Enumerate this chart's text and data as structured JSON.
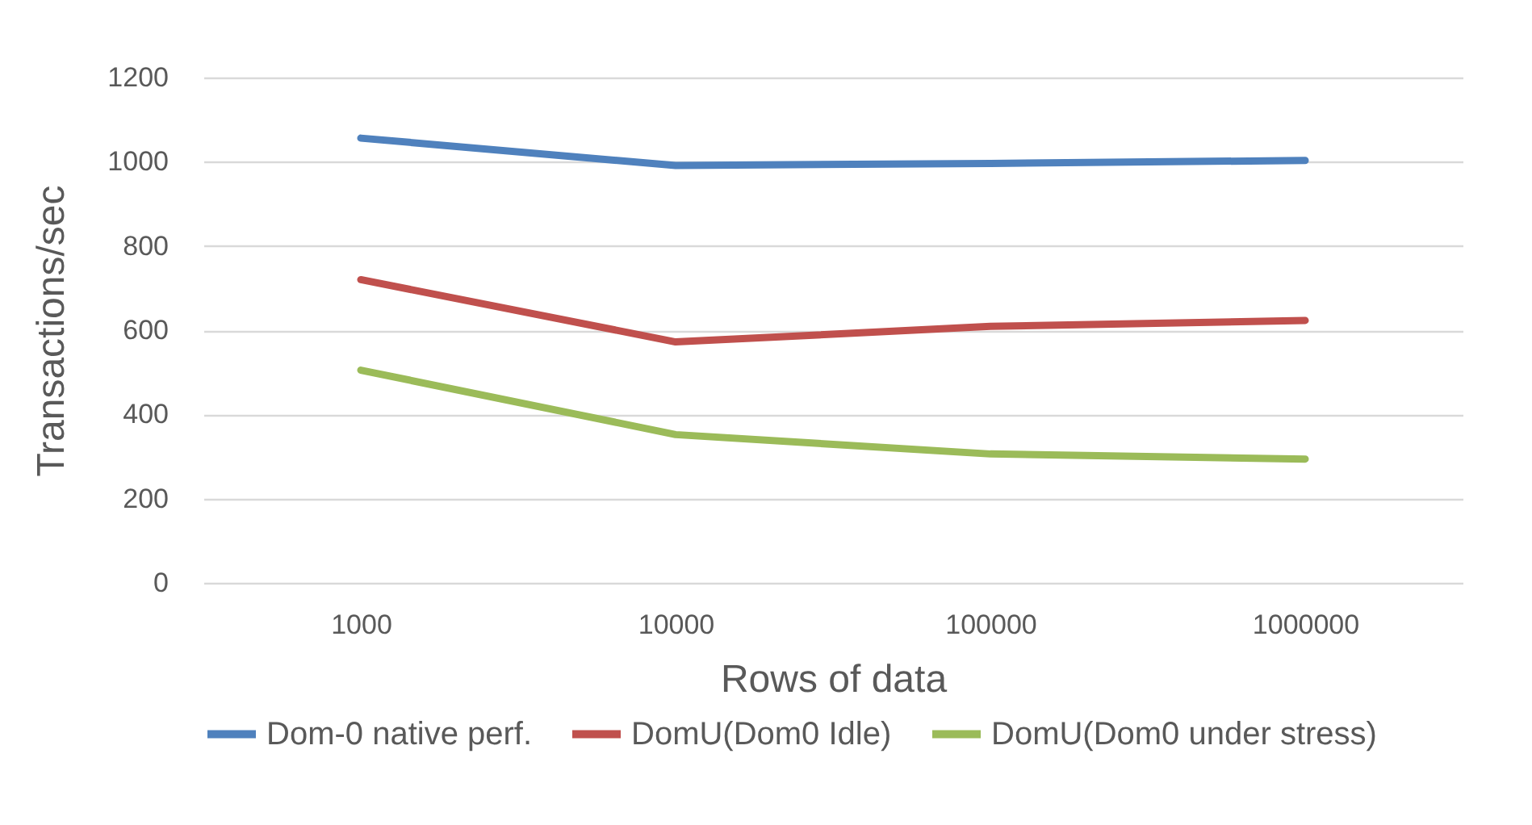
{
  "chart_data": {
    "type": "line",
    "xlabel": "Rows of data",
    "ylabel": "Transactions/sec",
    "categories": [
      "1000",
      "10000",
      "100000",
      "1000000"
    ],
    "series": [
      {
        "name": "Dom-0 native perf.",
        "color": "#4f81bd",
        "values": [
          1056,
          991,
          996,
          1003
        ]
      },
      {
        "name": "DomU(Dom0 Idle)",
        "color": "#c0504d",
        "values": [
          720,
          572,
          609,
          623
        ]
      },
      {
        "name": "DomU(Dom0 under stress)",
        "color": "#9bbb59",
        "values": [
          505,
          352,
          306,
          294
        ]
      }
    ],
    "ylim": [
      0,
      1200
    ],
    "yticks": [
      0,
      200,
      400,
      600,
      800,
      1000,
      1200
    ],
    "grid": "y",
    "legend": "bottom",
    "marker": "none",
    "line_style": "solid"
  }
}
